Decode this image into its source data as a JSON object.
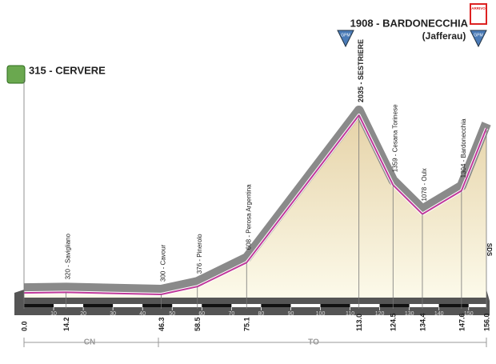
{
  "chart_data": {
    "type": "area",
    "x": [
      0,
      14.2,
      46.3,
      58.5,
      75.1,
      113,
      124.5,
      134.4,
      147.6,
      156
    ],
    "x_labels": [
      "0.0",
      "14.2",
      "46.3",
      "58.5",
      "75.1",
      "113.0",
      "124.5",
      "134.4",
      "147.6",
      "156.0"
    ],
    "values": [
      315,
      320,
      300,
      376,
      608,
      2035,
      1359,
      1078,
      1304,
      1908
    ],
    "point_labels": [
      "315 - CERVERE",
      "320 - Savigliano",
      "300 - Cavour",
      "376 - Pinerolo",
      "608 - Perosa Argentina",
      "2035 - SESTRIERE",
      "1359 - Cesana Torinese",
      "1078 - Oulx",
      "1304 - Bardonecchia",
      "1908 - BARDONECCHIA"
    ],
    "finish_note": "(Jafferau)",
    "xlim": [
      0,
      156
    ],
    "xticks": [
      10,
      20,
      30,
      40,
      50,
      60,
      70,
      80,
      90,
      100,
      110,
      120,
      130,
      140,
      150
    ],
    "provinces": [
      "CN",
      "TO"
    ],
    "climb_badge": "GPM",
    "finish_badge": "ARRIVO",
    "end_mark": "SDS",
    "color": "#c0399a"
  }
}
